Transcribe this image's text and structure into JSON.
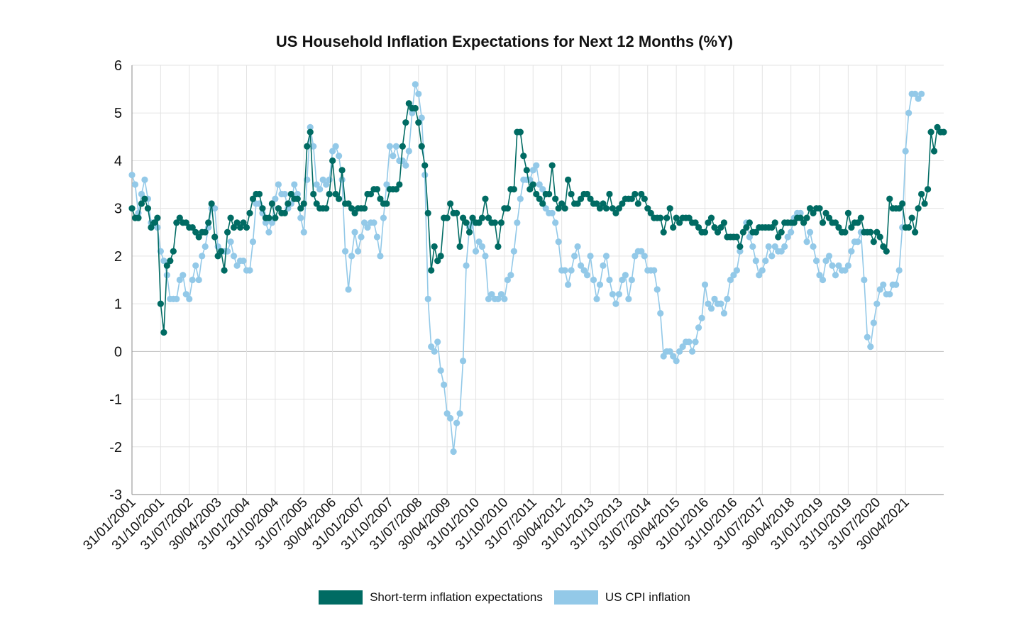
{
  "chart_data": {
    "type": "line",
    "title": "US Household Inflation Expectations for Next 12 Months (%Y)",
    "ylim": [
      -3,
      6
    ],
    "y_ticks": [
      6,
      5,
      4,
      3,
      2,
      1,
      0,
      -1,
      -2,
      -3
    ],
    "grid": true,
    "legend_position": "bottom",
    "x_start": "2001-01",
    "x_end": "2021-08",
    "x_tick_labels": [
      "31/01/2001",
      "31/10/2001",
      "31/07/2002",
      "30/04/2003",
      "31/01/2004",
      "31/10/2004",
      "31/07/2005",
      "30/04/2006",
      "31/01/2007",
      "31/10/2007",
      "31/07/2008",
      "30/04/2009",
      "31/01/2010",
      "31/10/2010",
      "31/07/2011",
      "30/04/2012",
      "31/01/2013",
      "31/10/2013",
      "31/07/2014",
      "30/04/2015",
      "31/01/2016",
      "31/10/2016",
      "31/07/2017",
      "30/04/2018",
      "31/01/2019",
      "31/10/2019",
      "31/07/2020",
      "30/04/2021"
    ],
    "series": [
      {
        "name": "Short-term inflation expectations",
        "color": "#006b63",
        "values": [
          3.0,
          2.8,
          2.8,
          3.1,
          3.2,
          3.0,
          2.6,
          2.7,
          2.8,
          1.0,
          0.4,
          1.8,
          1.9,
          2.1,
          2.7,
          2.8,
          2.7,
          2.7,
          2.6,
          2.6,
          2.5,
          2.4,
          2.5,
          2.5,
          2.7,
          3.1,
          2.4,
          2.0,
          2.1,
          1.7,
          2.5,
          2.8,
          2.6,
          2.7,
          2.6,
          2.7,
          2.6,
          2.9,
          3.2,
          3.3,
          3.3,
          3.0,
          2.8,
          2.8,
          3.1,
          2.8,
          3.0,
          2.9,
          2.9,
          3.1,
          3.3,
          3.2,
          3.2,
          3.0,
          3.1,
          4.3,
          4.6,
          3.3,
          3.1,
          3.0,
          3.0,
          3.0,
          3.3,
          4.0,
          3.3,
          3.2,
          3.8,
          3.1,
          3.1,
          3.0,
          2.9,
          3.0,
          3.0,
          3.0,
          3.3,
          3.3,
          3.4,
          3.4,
          3.2,
          3.1,
          3.1,
          3.4,
          3.4,
          3.4,
          3.5,
          4.3,
          4.8,
          5.2,
          5.1,
          5.1,
          4.8,
          4.3,
          3.9,
          2.9,
          1.7,
          2.2,
          1.9,
          2.0,
          2.8,
          2.8,
          3.1,
          2.9,
          2.9,
          2.2,
          2.8,
          2.7,
          2.5,
          2.8,
          2.7,
          2.7,
          2.8,
          3.2,
          2.8,
          2.7,
          2.7,
          2.2,
          2.7,
          3.0,
          3.0,
          3.4,
          3.4,
          4.6,
          4.6,
          4.1,
          3.8,
          3.4,
          3.5,
          3.3,
          3.2,
          3.1,
          3.3,
          3.3,
          3.9,
          3.2,
          3.0,
          3.1,
          3.0,
          3.6,
          3.3,
          3.1,
          3.1,
          3.2,
          3.3,
          3.3,
          3.2,
          3.1,
          3.1,
          3.0,
          3.1,
          3.0,
          3.3,
          3.0,
          2.9,
          3.0,
          3.1,
          3.2,
          3.2,
          3.2,
          3.3,
          3.1,
          3.3,
          3.2,
          3.0,
          2.9,
          2.8,
          2.8,
          2.8,
          2.5,
          2.8,
          3.0,
          2.6,
          2.8,
          2.7,
          2.8,
          2.8,
          2.8,
          2.7,
          2.7,
          2.6,
          2.5,
          2.5,
          2.7,
          2.8,
          2.6,
          2.5,
          2.6,
          2.7,
          2.4,
          2.4,
          2.4,
          2.4,
          2.2,
          2.5,
          2.6,
          2.7,
          2.5,
          2.5,
          2.6,
          2.6,
          2.6,
          2.6,
          2.6,
          2.7,
          2.4,
          2.5,
          2.7,
          2.7,
          2.7,
          2.7,
          2.8,
          2.8,
          2.7,
          2.8,
          3.0,
          2.9,
          3.0,
          3.0,
          2.7,
          2.9,
          2.8,
          2.7,
          2.7,
          2.6,
          2.5,
          2.5,
          2.9,
          2.6,
          2.7,
          2.7,
          2.8,
          2.5,
          2.5,
          2.5,
          2.3,
          2.5,
          2.4,
          2.2,
          2.1,
          3.2,
          3.0,
          3.0,
          3.0,
          3.1,
          2.6,
          2.6,
          2.8,
          2.5,
          3.0,
          3.3,
          3.1,
          3.4,
          4.6,
          4.2,
          4.7,
          4.6,
          4.6
        ]
      },
      {
        "name": "US CPI inflation",
        "color": "#93c9e8",
        "values": [
          3.7,
          3.5,
          2.9,
          3.3,
          3.6,
          3.2,
          2.7,
          2.7,
          2.6,
          2.1,
          1.9,
          1.6,
          1.1,
          1.1,
          1.1,
          1.5,
          1.6,
          1.2,
          1.1,
          1.5,
          1.8,
          1.5,
          2.0,
          2.2,
          2.6,
          3.0,
          3.0,
          2.2,
          2.1,
          2.1,
          2.1,
          2.3,
          2.0,
          1.8,
          1.9,
          1.9,
          1.7,
          1.7,
          2.3,
          3.1,
          3.1,
          2.9,
          2.7,
          2.5,
          2.7,
          3.2,
          3.5,
          3.3,
          3.3,
          3.0,
          3.1,
          3.5,
          3.3,
          2.8,
          2.5,
          3.6,
          4.7,
          4.3,
          3.5,
          3.4,
          3.6,
          3.5,
          3.6,
          4.2,
          4.3,
          4.1,
          3.6,
          2.1,
          1.3,
          2.0,
          2.5,
          2.1,
          2.4,
          2.7,
          2.6,
          2.7,
          2.7,
          2.4,
          2.0,
          2.8,
          3.5,
          4.3,
          4.1,
          4.3,
          4.0,
          4.0,
          3.9,
          4.2,
          5.0,
          5.6,
          5.4,
          4.9,
          3.7,
          1.1,
          0.1,
          0.0,
          0.2,
          -0.4,
          -0.7,
          -1.3,
          -1.4,
          -2.1,
          -1.5,
          -1.3,
          -0.2,
          1.8,
          2.6,
          2.7,
          2.1,
          2.3,
          2.2,
          2.0,
          1.1,
          1.2,
          1.1,
          1.1,
          1.2,
          1.1,
          1.5,
          1.6,
          2.1,
          2.7,
          3.2,
          3.6,
          3.6,
          3.6,
          3.8,
          3.9,
          3.5,
          3.4,
          3.0,
          2.9,
          2.9,
          2.7,
          2.3,
          1.7,
          1.7,
          1.4,
          1.7,
          2.0,
          2.2,
          1.8,
          1.7,
          1.6,
          2.0,
          1.5,
          1.1,
          1.4,
          1.8,
          2.0,
          1.5,
          1.2,
          1.0,
          1.2,
          1.5,
          1.6,
          1.1,
          1.5,
          2.0,
          2.1,
          2.1,
          2.0,
          1.7,
          1.7,
          1.7,
          1.3,
          0.8,
          -0.1,
          0.0,
          0.0,
          -0.1,
          -0.2,
          0.0,
          0.1,
          0.2,
          0.2,
          0.0,
          0.2,
          0.5,
          0.7,
          1.4,
          1.0,
          0.9,
          1.1,
          1.0,
          1.0,
          0.8,
          1.1,
          1.5,
          1.6,
          1.7,
          2.1,
          2.5,
          2.7,
          2.4,
          2.2,
          1.9,
          1.6,
          1.7,
          1.9,
          2.2,
          2.0,
          2.2,
          2.1,
          2.1,
          2.2,
          2.4,
          2.5,
          2.8,
          2.9,
          2.9,
          2.7,
          2.3,
          2.5,
          2.2,
          1.9,
          1.6,
          1.5,
          1.9,
          2.0,
          1.8,
          1.6,
          1.8,
          1.7,
          1.7,
          1.8,
          2.1,
          2.3,
          2.3,
          2.5,
          1.5,
          0.3,
          0.1,
          0.6,
          1.0,
          1.3,
          1.4,
          1.2,
          1.2,
          1.4,
          1.4,
          1.7,
          2.6,
          4.2,
          5.0,
          5.4,
          5.4,
          5.3,
          5.4
        ]
      }
    ]
  }
}
